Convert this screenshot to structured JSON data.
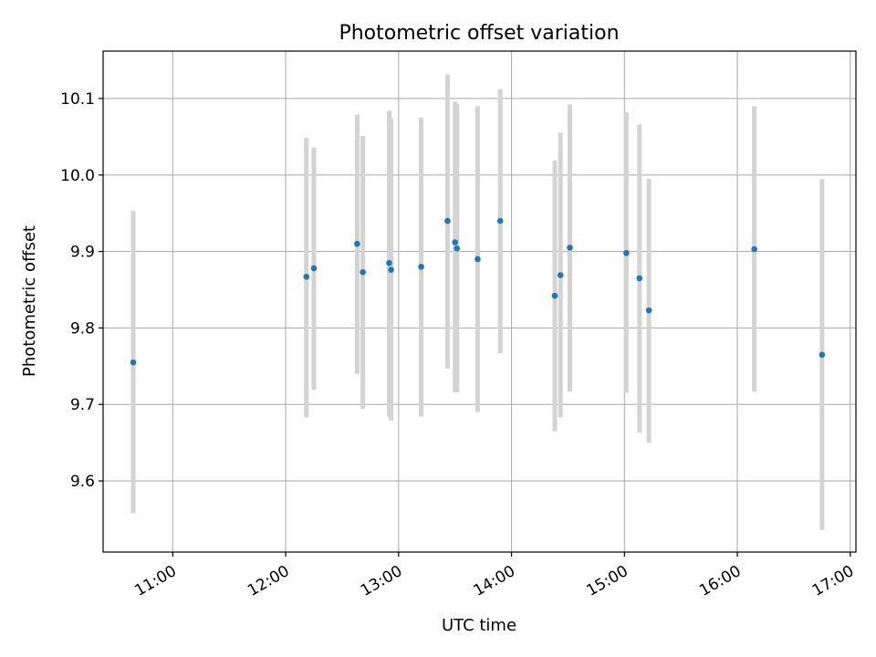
{
  "chart_data": {
    "type": "scatter",
    "title": "Photometric offset variation",
    "xlabel": "UTC time",
    "ylabel": "Photometric offset",
    "x_ticks": [
      "11:00",
      "12:00",
      "13:00",
      "14:00",
      "15:00",
      "16:00",
      "17:00"
    ],
    "y_ticks": [
      "9.6",
      "9.7",
      "9.8",
      "9.9",
      "10.0",
      "10.1"
    ],
    "xlim": [
      "10:23",
      "17:03"
    ],
    "ylim": [
      9.507,
      10.162
    ],
    "grid": true,
    "series": [
      {
        "errorbars": true,
        "points": [
          {
            "x": "10:39",
            "y": 9.755,
            "ylow": 9.558,
            "yhigh": 9.953
          },
          {
            "x": "12:11",
            "y": 9.867,
            "ylow": 9.683,
            "yhigh": 10.049
          },
          {
            "x": "12:15",
            "y": 9.878,
            "ylow": 9.719,
            "yhigh": 10.036
          },
          {
            "x": "12:38",
            "y": 9.91,
            "ylow": 9.74,
            "yhigh": 10.079
          },
          {
            "x": "12:41",
            "y": 9.873,
            "ylow": 9.694,
            "yhigh": 10.051
          },
          {
            "x": "12:55",
            "y": 9.885,
            "ylow": 9.684,
            "yhigh": 10.084
          },
          {
            "x": "12:56",
            "y": 9.876,
            "ylow": 9.679,
            "yhigh": 10.074
          },
          {
            "x": "13:12",
            "y": 9.88,
            "ylow": 9.684,
            "yhigh": 10.075
          },
          {
            "x": "13:26",
            "y": 9.94,
            "ylow": 9.747,
            "yhigh": 10.131
          },
          {
            "x": "13:30",
            "y": 9.912,
            "ylow": 9.716,
            "yhigh": 10.096
          },
          {
            "x": "13:31",
            "y": 9.904,
            "ylow": 9.716,
            "yhigh": 10.093
          },
          {
            "x": "13:42",
            "y": 9.89,
            "ylow": 9.69,
            "yhigh": 10.09
          },
          {
            "x": "13:54",
            "y": 9.94,
            "ylow": 9.767,
            "yhigh": 10.112
          },
          {
            "x": "14:23",
            "y": 9.842,
            "ylow": 9.665,
            "yhigh": 10.019
          },
          {
            "x": "14:26",
            "y": 9.869,
            "ylow": 9.683,
            "yhigh": 10.055
          },
          {
            "x": "14:31",
            "y": 9.905,
            "ylow": 9.717,
            "yhigh": 10.092
          },
          {
            "x": "15:01",
            "y": 9.898,
            "ylow": 9.715,
            "yhigh": 10.082
          },
          {
            "x": "15:08",
            "y": 9.865,
            "ylow": 9.663,
            "yhigh": 10.066
          },
          {
            "x": "15:13",
            "y": 9.823,
            "ylow": 9.65,
            "yhigh": 9.995
          },
          {
            "x": "16:09",
            "y": 9.903,
            "ylow": 9.717,
            "yhigh": 10.09
          },
          {
            "x": "16:45",
            "y": 9.765,
            "ylow": 9.536,
            "yhigh": 9.995
          }
        ]
      }
    ],
    "colors": {
      "point": "#1f77b4",
      "errorbar": "#d3d3d3",
      "grid": "#b0b0b0"
    }
  }
}
